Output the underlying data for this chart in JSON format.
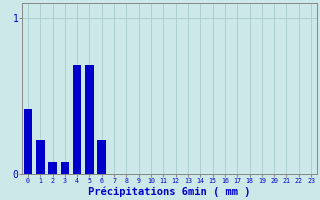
{
  "title": "",
  "xlabel": "Précipitations 6min ( mm )",
  "ylabel": "",
  "background_color": "#cce8e8",
  "bar_color": "#0000cc",
  "grid_color": "#aacccc",
  "categories": [
    0,
    1,
    2,
    3,
    4,
    5,
    6,
    7,
    8,
    9,
    10,
    11,
    12,
    13,
    14,
    15,
    16,
    17,
    18,
    19,
    20,
    21,
    22,
    23
  ],
  "bar_heights": [
    0.42,
    0.22,
    0.08,
    0.08,
    0.7,
    0.7,
    0.22,
    0.0,
    0.0,
    0.0,
    0.0,
    0.0,
    0.0,
    0.0,
    0.0,
    0.0,
    0.0,
    0.0,
    0.0,
    0.0,
    0.0,
    0.0,
    0.0,
    0.0
  ],
  "yticks": [
    0,
    1
  ],
  "ylim": [
    0,
    1.1
  ],
  "xlim": [
    -0.5,
    23.5
  ],
  "axis_color": "#888888",
  "tick_color": "#0000cc",
  "xlabel_color": "#0000cc",
  "xlabel_fontsize": 7.5,
  "ytick_fontsize": 7,
  "xtick_fontsize": 4.8
}
